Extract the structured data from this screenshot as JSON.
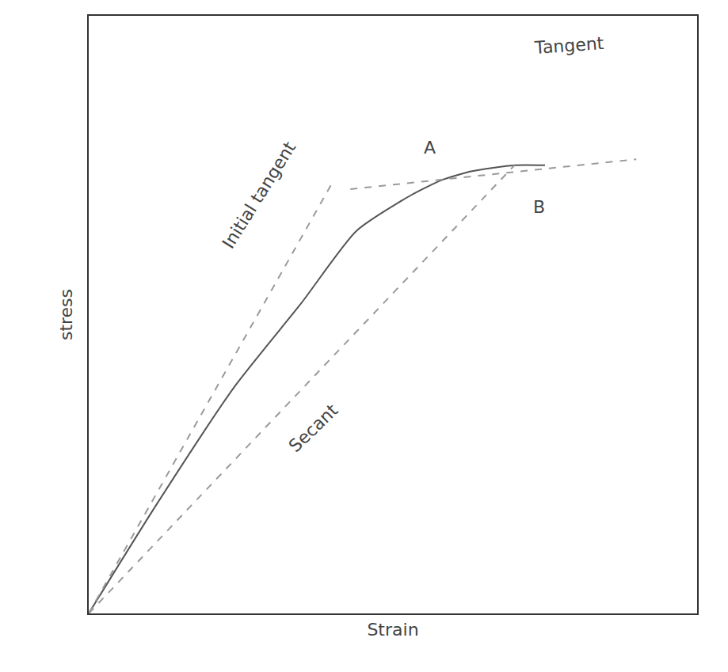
{
  "chart_data": {
    "type": "line",
    "x_label": "Strain",
    "y_label": "stress",
    "xlim": [
      0,
      100
    ],
    "ylim": [
      0,
      100
    ],
    "tick_labels": false,
    "grid": false,
    "series": [
      {
        "x": [
          0,
          11,
          24,
          35,
          44,
          53,
          58,
          63,
          70,
          75
        ],
        "values": [
          0,
          18,
          38,
          52,
          64,
          70,
          72.5,
          74,
          75,
          75
        ],
        "color": "#555555",
        "line_style": "solid"
      },
      {
        "x": [
          0,
          40
        ],
        "values": [
          0,
          72
        ],
        "color": "#9a9a9a",
        "line_style": "dashed"
      },
      {
        "x": [
          43,
          90
        ],
        "values": [
          71,
          76
        ],
        "color": "#9a9a9a",
        "line_style": "dashed"
      },
      {
        "x": [
          0,
          70
        ],
        "values": [
          0,
          75
        ],
        "color": "#9a9a9a",
        "line_style": "dashed"
      }
    ],
    "annotations": [
      {
        "text": "Initial tangent",
        "x": 28,
        "y": 70
      },
      {
        "text": "Tangent",
        "x": 79,
        "y": 95
      },
      {
        "text": "Secant",
        "x": 37,
        "y": 31
      },
      {
        "text": "A",
        "x": 56,
        "y": 78
      },
      {
        "text": "B",
        "x": 74,
        "y": 68
      }
    ]
  }
}
